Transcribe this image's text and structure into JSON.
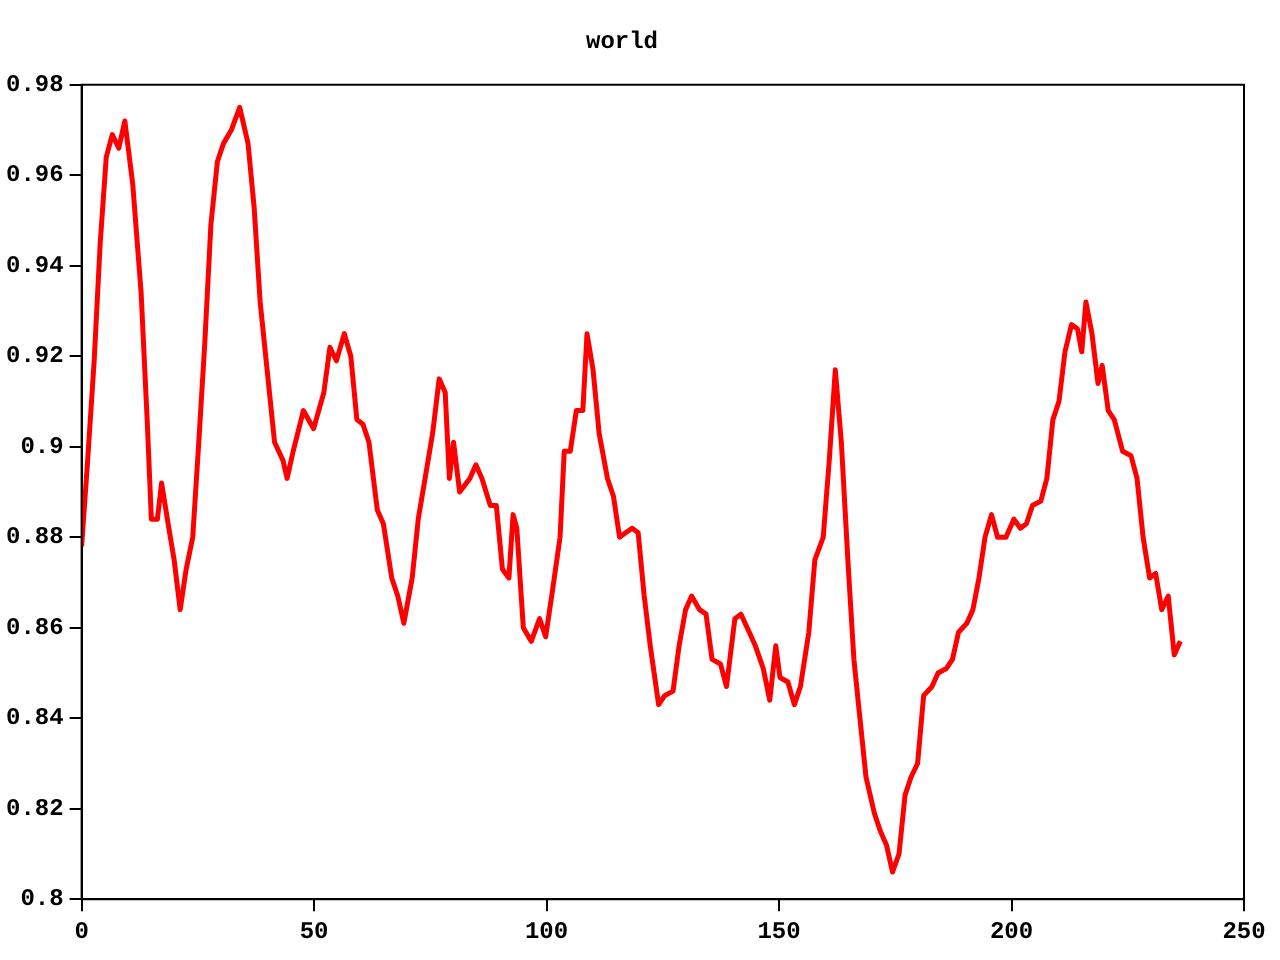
{
  "chart_data": {
    "type": "line",
    "title": "world",
    "xlim": [
      0,
      250
    ],
    "xticks": [
      0,
      50,
      100,
      150,
      200,
      250
    ],
    "ylim": [
      0.8,
      0.98
    ],
    "yticks": [
      0.8,
      0.82,
      0.84,
      0.86,
      0.88,
      0.9,
      0.92,
      0.94,
      0.96,
      0.98
    ],
    "grid": false,
    "legend": false,
    "marker": "none",
    "line_style": "solid",
    "series": [
      {
        "color": "#ff0000",
        "x": [
          0,
          1.3,
          2.7,
          4,
          5.3,
          6.6,
          8,
          9.3,
          11,
          12.8,
          14.1,
          15,
          16.3,
          17.2,
          18.6,
          19.9,
          21.2,
          22.5,
          23.9,
          25.2,
          26.5,
          27.8,
          29.2,
          30.5,
          32.2,
          34,
          35.8,
          37.1,
          38.4,
          40.2,
          41.5,
          43.3,
          44.2,
          45.5,
          47.7,
          49.9,
          52.1,
          53.4,
          54.8,
          56.5,
          57.9,
          59.2,
          60.5,
          61.8,
          63.6,
          64.9,
          66.7,
          68,
          69.3,
          71.1,
          72.4,
          74.2,
          75.5,
          76.9,
          78.2,
          79.1,
          80,
          81.3,
          83.5,
          84.8,
          86.1,
          87.9,
          89.2,
          90.5,
          91.9,
          92.8,
          93.6,
          95,
          96.7,
          98.5,
          99.8,
          101.1,
          102.9,
          103.8,
          105.1,
          106.4,
          107.8,
          108.7,
          110,
          111.3,
          113.1,
          114.4,
          115.7,
          117,
          118.4,
          119.7,
          121,
          122.3,
          124.1,
          125.4,
          127.2,
          128.5,
          129.9,
          131.2,
          132.9,
          134.3,
          135.6,
          137.4,
          138.7,
          140.5,
          141.8,
          143.6,
          144.9,
          146.6,
          148,
          149.3,
          150.2,
          151.9,
          153.3,
          154.6,
          156.4,
          157.7,
          159.5,
          160.8,
          162.1,
          163.4,
          164.8,
          166.1,
          167.4,
          168.7,
          170.5,
          171.8,
          173.1,
          174.4,
          175.8,
          177.1,
          178.4,
          179.8,
          181.1,
          182.9,
          184.2,
          186,
          187.3,
          188.6,
          190.4,
          191.7,
          193,
          194.3,
          195.7,
          197,
          198.8,
          200.5,
          201.9,
          203.2,
          204.5,
          206.3,
          207.6,
          208.9,
          210.2,
          211.5,
          212.9,
          214.2,
          215.1,
          216,
          217.3,
          218.6,
          219.5,
          220.8,
          222.1,
          223.9,
          225.7,
          227,
          228.3,
          229.7,
          231,
          232.3,
          233.7,
          235,
          236.3
        ],
        "values": [
          0.878,
          0.897,
          0.919,
          0.945,
          0.964,
          0.969,
          0.966,
          0.972,
          0.958,
          0.934,
          0.906,
          0.884,
          0.884,
          0.892,
          0.883,
          0.875,
          0.864,
          0.873,
          0.88,
          0.901,
          0.923,
          0.949,
          0.963,
          0.967,
          0.97,
          0.975,
          0.967,
          0.953,
          0.932,
          0.914,
          0.901,
          0.897,
          0.893,
          0.899,
          0.908,
          0.904,
          0.912,
          0.922,
          0.919,
          0.925,
          0.92,
          0.906,
          0.905,
          0.901,
          0.886,
          0.883,
          0.871,
          0.867,
          0.861,
          0.871,
          0.884,
          0.895,
          0.903,
          0.915,
          0.912,
          0.893,
          0.901,
          0.89,
          0.893,
          0.896,
          0.893,
          0.887,
          0.887,
          0.873,
          0.871,
          0.885,
          0.882,
          0.86,
          0.857,
          0.862,
          0.858,
          0.867,
          0.88,
          0.899,
          0.899,
          0.908,
          0.908,
          0.925,
          0.917,
          0.903,
          0.893,
          0.889,
          0.88,
          0.881,
          0.882,
          0.881,
          0.867,
          0.856,
          0.843,
          0.845,
          0.846,
          0.856,
          0.864,
          0.867,
          0.864,
          0.863,
          0.853,
          0.852,
          0.847,
          0.862,
          0.863,
          0.859,
          0.856,
          0.851,
          0.844,
          0.856,
          0.849,
          0.848,
          0.843,
          0.847,
          0.859,
          0.875,
          0.88,
          0.897,
          0.917,
          0.901,
          0.875,
          0.853,
          0.84,
          0.827,
          0.819,
          0.815,
          0.812,
          0.806,
          0.81,
          0.823,
          0.827,
          0.83,
          0.845,
          0.847,
          0.85,
          0.851,
          0.853,
          0.859,
          0.861,
          0.864,
          0.871,
          0.88,
          0.885,
          0.88,
          0.88,
          0.884,
          0.882,
          0.883,
          0.887,
          0.888,
          0.893,
          0.906,
          0.91,
          0.921,
          0.927,
          0.926,
          0.921,
          0.932,
          0.925,
          0.914,
          0.918,
          0.908,
          0.906,
          0.899,
          0.898,
          0.893,
          0.88,
          0.871,
          0.872,
          0.864,
          0.867,
          0.854,
          0.857
        ]
      }
    ]
  }
}
